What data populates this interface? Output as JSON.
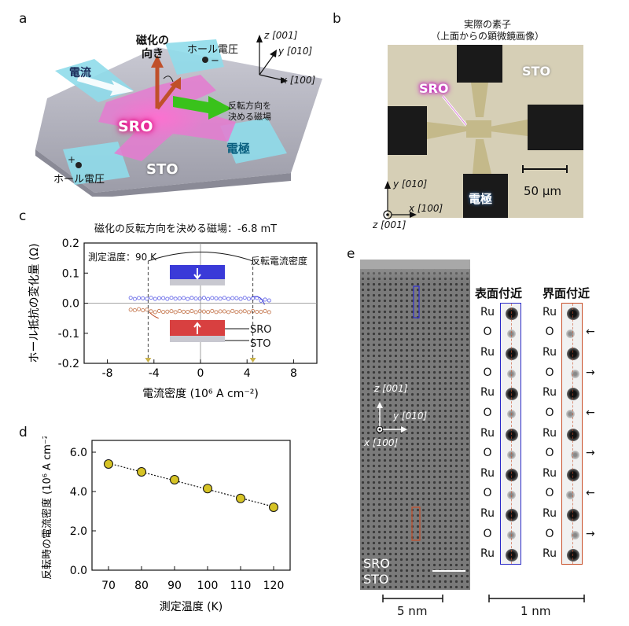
{
  "panels": {
    "a": "a",
    "b": "b",
    "c": "c",
    "d": "d",
    "e": "e"
  },
  "panel_a": {
    "current": "電流",
    "magnetization": [
      "磁化の",
      "向き"
    ],
    "hall_voltage_top": "ホール電圧",
    "hall_voltage_bottom": "ホール電圧",
    "minus_sign": "−",
    "plus_sign": "+",
    "field_label": [
      "反転方向を",
      "決める磁場"
    ],
    "sro": "SRO",
    "sto": "STO",
    "electrode": "電極",
    "axis_z": "z [001]",
    "axis_y": "y [010]",
    "axis_x": "x [100]"
  },
  "panel_b": {
    "title_line1": "実際の素子",
    "title_line2": "（上面からの顕微鏡画像）",
    "sro": "SRO",
    "sto": "STO",
    "electrode": "電極",
    "scale": "50 μm",
    "axis_y": "y [010]",
    "axis_x": "x [100]",
    "axis_z": "z [001]"
  },
  "panel_c": {
    "title": "磁化の反転方向を決める磁場：-6.8 mT",
    "temperature": "測定温度：90 K",
    "switch_label": "反転電流密度",
    "sro_label": "SRO",
    "sto_label": "STO"
  },
  "panel_e": {
    "surface_title": "表面付近",
    "interface_title": "界面付近",
    "sro": "SRO",
    "sto": "STO",
    "axis_z": "z [001]",
    "axis_y": "y [010]",
    "axis_x": "x [100]",
    "scale_5nm": "5 nm",
    "scale_1nm": "1 nm",
    "atom_rows": [
      "Ru",
      "O",
      "Ru",
      "O",
      "Ru",
      "O",
      "Ru",
      "O",
      "Ru",
      "O",
      "Ru",
      "O",
      "Ru"
    ],
    "interface_arrows": [
      "",
      "←",
      "",
      "→",
      "",
      "←",
      "",
      "→",
      "",
      "←",
      "",
      "→",
      ""
    ]
  },
  "colors": {
    "sro_pink": "#e2007a",
    "sto_gray": "#9a9aa6",
    "electrode_cyan": "#7fd6e6",
    "field_green": "#39c21b",
    "moment_brown": "#c0502a",
    "data_blue": "#6d6fe8",
    "data_orange": "#c8805a",
    "marker_yellow": "#d6c325",
    "box_blue": "#2a2ac8",
    "box_red": "#c8502a"
  },
  "chart_data": [
    {
      "type": "scatter",
      "title": "磁化の反転方向を決める磁場：-6.8 mT",
      "xlabel": "電流密度 (10⁶ A cm⁻²)",
      "ylabel": "ホール抵抗の変化量 (Ω)",
      "xlim": [
        -10,
        10
      ],
      "ylim": [
        -0.2,
        0.2
      ],
      "xticks": [
        -8,
        -4,
        0,
        4,
        8
      ],
      "yticks": [
        0.2,
        0.1,
        0.0,
        -0.1,
        -0.2
      ],
      "switch_points": [
        -4.5,
        4.5
      ],
      "series": [
        {
          "name": "upper branch",
          "color": "#6d6fe8",
          "level": 0.016
        },
        {
          "name": "lower branch",
          "color": "#c8805a",
          "level": -0.028
        }
      ]
    },
    {
      "type": "line",
      "title": "",
      "xlabel": "測定温度 (K)",
      "ylabel": "反転時の電流密度 (10⁶ A cm⁻²)",
      "x": [
        70,
        80,
        90,
        100,
        110,
        120
      ],
      "values": [
        5.4,
        5.0,
        4.6,
        4.15,
        3.65,
        3.2
      ],
      "xlim": [
        65,
        125
      ],
      "ylim": [
        0.0,
        6.6
      ],
      "yticks": [
        0.0,
        2.0,
        4.0,
        6.0
      ],
      "yticklabels": [
        "0.0",
        "2.0",
        "4.0",
        "6.0"
      ],
      "xticks": [
        70,
        80,
        90,
        100,
        110,
        120
      ]
    }
  ]
}
